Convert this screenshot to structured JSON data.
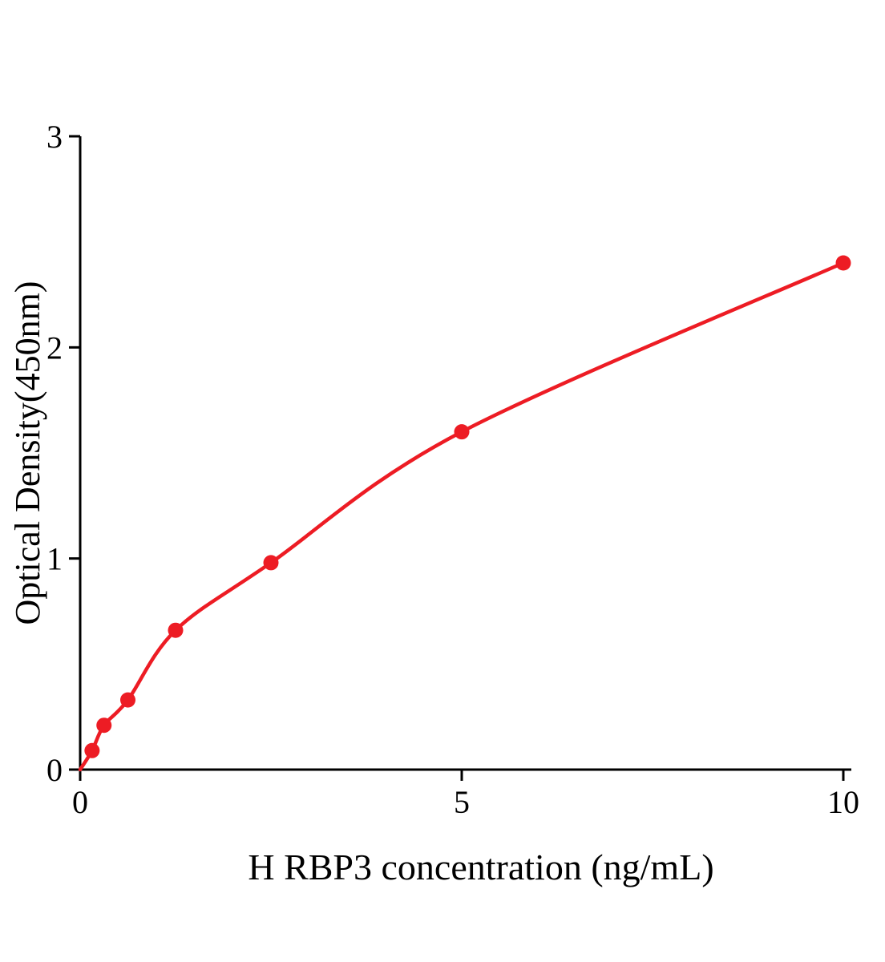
{
  "chart_data": {
    "type": "scatter",
    "title": "",
    "xlabel": "H RBP3 concentration (ng/mL)",
    "ylabel": "Optical Density(450nm)",
    "x": [
      0.156,
      0.3125,
      0.625,
      1.25,
      2.5,
      5,
      10
    ],
    "y": [
      0.09,
      0.21,
      0.33,
      0.66,
      0.98,
      1.6,
      2.4
    ],
    "curve_start": [
      0,
      0
    ],
    "xlim": [
      0,
      10
    ],
    "ylim": [
      0,
      3
    ],
    "xticks": [
      0,
      5,
      10
    ],
    "yticks": [
      0,
      1,
      2,
      3
    ],
    "grid": false,
    "legend": false,
    "line_color": "#ed1c24",
    "marker_color": "#ed1c24",
    "axis_color": "#000000"
  }
}
